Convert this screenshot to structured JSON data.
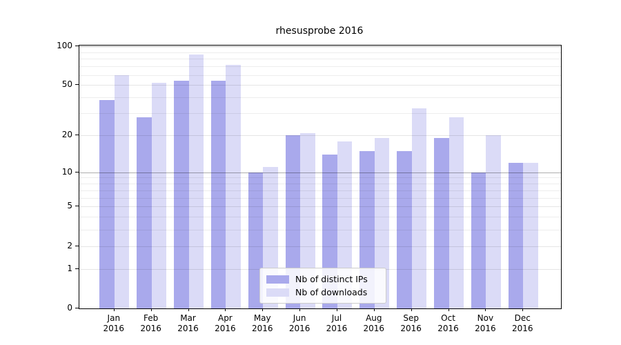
{
  "title": "rhesusprobe 2016",
  "legend": {
    "items": [
      {
        "label": "Nb of distinct IPs",
        "color": "#a9a9ec"
      },
      {
        "label": "Nb of downloads",
        "color": "#dbdbf7"
      }
    ]
  },
  "x_axis": {
    "months": [
      "Jan",
      "Feb",
      "Mar",
      "Apr",
      "May",
      "Jun",
      "Jul",
      "Aug",
      "Sep",
      "Oct",
      "Nov",
      "Dec"
    ],
    "year": "2016"
  },
  "y_axis": {
    "tick_labels": [
      "100",
      "50",
      "20",
      "10",
      "5",
      "2",
      "1",
      "0"
    ]
  },
  "chart_data": {
    "type": "bar",
    "title": "rhesusprobe 2016",
    "categories": [
      "Jan 2016",
      "Feb 2016",
      "Mar 2016",
      "Apr 2016",
      "May 2016",
      "Jun 2016",
      "Jul 2016",
      "Aug 2016",
      "Sep 2016",
      "Oct 2016",
      "Nov 2016",
      "Dec 2016"
    ],
    "series": [
      {
        "name": "Nb of distinct IPs",
        "color": "#a9a9ec",
        "values": [
          38,
          28,
          54,
          54,
          10,
          20,
          14,
          15,
          15,
          19,
          10,
          12
        ]
      },
      {
        "name": "Nb of downloads",
        "color": "#dbdbf7",
        "values": [
          60,
          52,
          86,
          72,
          11,
          21,
          18,
          19,
          33,
          28,
          20,
          12
        ]
      }
    ],
    "y_scale": {
      "type": "log1p_base10",
      "ylim": [
        0,
        100
      ],
      "labeled_ticks": [
        0,
        1,
        2,
        5,
        10,
        20,
        50,
        100
      ],
      "major_grid": [
        1,
        2,
        5,
        20,
        50
      ],
      "decade_grid": [
        10,
        100
      ],
      "minor_grid": [
        3,
        4,
        6,
        7,
        8,
        9,
        30,
        40,
        60,
        70,
        80,
        90
      ]
    },
    "grid": "on",
    "legend_position": "lower center"
  }
}
